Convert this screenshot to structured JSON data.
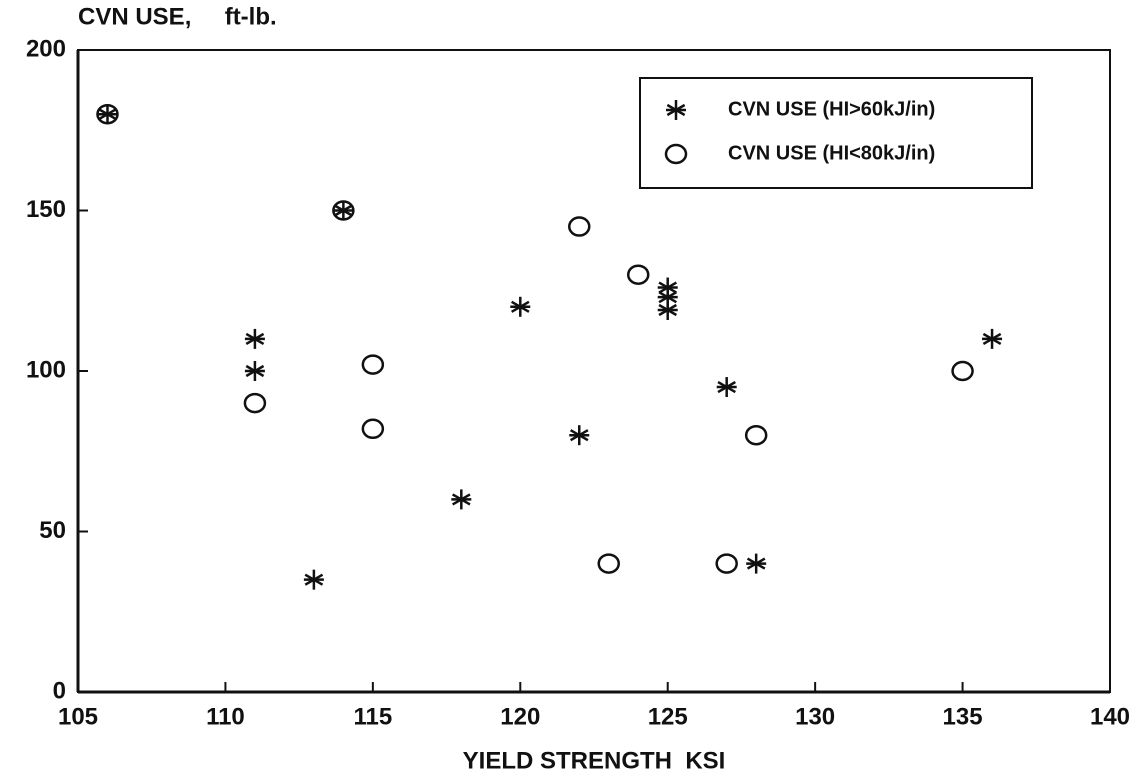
{
  "chart_data": {
    "type": "scatter",
    "y_axis_label": "CVN USE,     ft-lb.",
    "x_axis_label": "YIELD STRENGTH  KSI",
    "xlim": [
      105,
      140
    ],
    "xticks": [
      105,
      110,
      115,
      120,
      125,
      130,
      135,
      140
    ],
    "ylim": [
      0,
      200
    ],
    "yticks": [
      0,
      50,
      100,
      150,
      200
    ],
    "legend": "top-right",
    "series": [
      {
        "name": "CVN USE (HI>60kJ/in)",
        "marker": "asterisk",
        "color": "#111111",
        "x": [
          106,
          114,
          111,
          111,
          113,
          118,
          120,
          122,
          125,
          125,
          125,
          127,
          128,
          136
        ],
        "values": [
          180,
          150,
          110,
          100,
          35,
          60,
          120,
          80,
          126,
          123,
          119,
          95,
          40,
          110
        ]
      },
      {
        "name": "CVN USE (HI<80kJ/in)",
        "marker": "circle",
        "color": "#111111",
        "x": [
          106,
          114,
          111,
          115,
          115,
          122,
          124,
          123,
          127,
          128,
          135
        ],
        "values": [
          180,
          150,
          90,
          102,
          82,
          145,
          130,
          40,
          40,
          80,
          100
        ]
      }
    ]
  }
}
